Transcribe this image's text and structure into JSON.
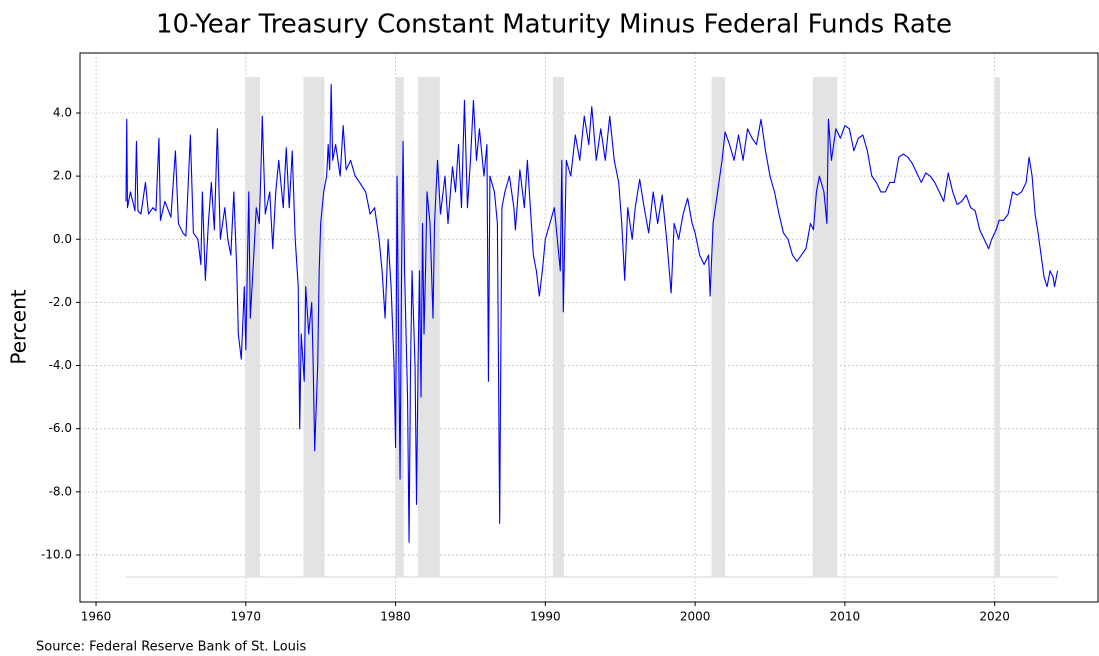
{
  "chart_data": {
    "type": "line",
    "title": "10-Year Treasury Constant Maturity Minus Federal Funds Rate",
    "y_label": "Percent",
    "source": "Source:  Federal Reserve Bank of St. Louis",
    "xlim": [
      1958.93,
      2026.9
    ],
    "ylim": [
      -11.49,
      5.9
    ],
    "xticks": [
      1960,
      1970,
      1980,
      1990,
      2000,
      2010,
      2020
    ],
    "yticks": [
      {
        "value": 4,
        "label": "4.0"
      },
      {
        "value": 2,
        "label": "2.0"
      },
      {
        "value": 0,
        "label": "0.0"
      },
      {
        "value": -2,
        "label": "-2.0"
      },
      {
        "value": -4,
        "label": "-4.0"
      },
      {
        "value": -6,
        "label": "-6.0"
      },
      {
        "value": -8,
        "label": "-8.0"
      },
      {
        "value": -10,
        "label": "-10.0"
      }
    ],
    "grid": true,
    "recessions": [
      [
        1969.95,
        1970.95
      ],
      [
        1973.85,
        1975.25
      ],
      [
        1980.0,
        1980.55
      ],
      [
        1981.5,
        1982.95
      ],
      [
        1990.5,
        1991.25
      ],
      [
        2001.1,
        2002.0
      ],
      [
        2007.85,
        2009.5
      ],
      [
        2020.0,
        2020.35
      ]
    ],
    "shade_ylim": [
      -10.7,
      5.14
    ],
    "shade_color": "#e3e3e3",
    "x": [
      1962.0,
      1962.05,
      1962.1,
      1962.3,
      1962.6,
      1962.7,
      1962.8,
      1963.0,
      1963.3,
      1963.5,
      1963.8,
      1964.0,
      1964.2,
      1964.3,
      1964.6,
      1965.0,
      1965.3,
      1965.5,
      1965.8,
      1966.0,
      1966.3,
      1966.5,
      1966.8,
      1967.0,
      1967.1,
      1967.3,
      1967.5,
      1967.7,
      1967.9,
      1968.1,
      1968.3,
      1968.6,
      1968.8,
      1969.0,
      1969.2,
      1969.4,
      1969.5,
      1969.7,
      1969.9,
      1970.0,
      1970.2,
      1970.3,
      1970.5,
      1970.7,
      1970.9,
      1971.0,
      1971.1,
      1971.3,
      1971.6,
      1971.8,
      1972.0,
      1972.2,
      1972.5,
      1972.7,
      1972.9,
      1973.1,
      1973.3,
      1973.5,
      1973.6,
      1973.7,
      1973.9,
      1974.0,
      1974.2,
      1974.4,
      1974.5,
      1974.6,
      1974.8,
      1974.9,
      1975.0,
      1975.2,
      1975.4,
      1975.5,
      1975.6,
      1975.7,
      1975.8,
      1976.0,
      1976.3,
      1976.5,
      1976.7,
      1977.0,
      1977.3,
      1977.6,
      1978.0,
      1978.3,
      1978.6,
      1978.9,
      1979.1,
      1979.3,
      1979.5,
      1979.7,
      1979.9,
      1980.0,
      1980.1,
      1980.2,
      1980.3,
      1980.4,
      1980.5,
      1980.6,
      1980.7,
      1980.8,
      1980.9,
      1981.0,
      1981.1,
      1981.3,
      1981.4,
      1981.5,
      1981.6,
      1981.7,
      1981.8,
      1981.9,
      1982.0,
      1982.1,
      1982.3,
      1982.5,
      1982.6,
      1982.8,
      1983.0,
      1983.3,
      1983.5,
      1983.8,
      1984.0,
      1984.2,
      1984.4,
      1984.6,
      1984.8,
      1985.0,
      1985.2,
      1985.4,
      1985.6,
      1985.9,
      1986.1,
      1986.2,
      1986.3,
      1986.6,
      1986.8,
      1986.95,
      1987.0,
      1987.1,
      1987.3,
      1987.6,
      1987.9,
      1988.0,
      1988.3,
      1988.6,
      1988.8,
      1989.0,
      1989.2,
      1989.4,
      1989.6,
      1989.8,
      1990.0,
      1990.3,
      1990.6,
      1990.8,
      1991.0,
      1991.1,
      1991.2,
      1991.4,
      1991.7,
      1992.0,
      1992.3,
      1992.6,
      1992.9,
      1993.1,
      1993.4,
      1993.7,
      1994.0,
      1994.3,
      1994.6,
      1994.9,
      1995.1,
      1995.3,
      1995.5,
      1995.8,
      1996.0,
      1996.3,
      1996.6,
      1996.9,
      1997.2,
      1997.5,
      1997.8,
      1998.1,
      1998.4,
      1998.6,
      1998.9,
      1999.2,
      1999.5,
      1999.8,
      2000.0,
      2000.3,
      2000.6,
      2000.9,
      2001.0,
      2001.2,
      2001.5,
      2001.8,
      2002.0,
      2002.3,
      2002.6,
      2002.9,
      2003.2,
      2003.5,
      2003.8,
      2004.1,
      2004.4,
      2004.7,
      2005.0,
      2005.3,
      2005.6,
      2005.9,
      2006.2,
      2006.5,
      2006.8,
      2007.1,
      2007.4,
      2007.7,
      2007.9,
      2008.1,
      2008.3,
      2008.6,
      2008.8,
      2008.9,
      2009.1,
      2009.4,
      2009.7,
      2010.0,
      2010.3,
      2010.6,
      2010.9,
      2011.2,
      2011.5,
      2011.8,
      2012.1,
      2012.4,
      2012.7,
      2013.0,
      2013.3,
      2013.6,
      2013.9,
      2014.2,
      2014.5,
      2014.8,
      2015.1,
      2015.4,
      2015.7,
      2016.0,
      2016.3,
      2016.6,
      2016.9,
      2017.2,
      2017.5,
      2017.8,
      2018.1,
      2018.4,
      2018.7,
      2019.0,
      2019.3,
      2019.6,
      2019.8,
      2020.1,
      2020.3,
      2020.6,
      2020.9,
      2021.2,
      2021.5,
      2021.8,
      2022.1,
      2022.3,
      2022.5,
      2022.7,
      2022.9,
      2023.1,
      2023.3,
      2023.5,
      2023.7,
      2023.9,
      2024.0,
      2024.2
    ],
    "series": [
      {
        "name": "10Y minus Fed Funds",
        "color": "#0000ff",
        "values": [
          1.2,
          3.8,
          1.0,
          1.5,
          0.9,
          3.1,
          0.9,
          0.8,
          1.8,
          0.8,
          1.0,
          0.9,
          3.2,
          0.6,
          1.2,
          0.7,
          2.8,
          0.5,
          0.2,
          0.1,
          3.3,
          0.2,
          0.0,
          -0.8,
          1.5,
          -1.3,
          0.5,
          1.8,
          0.3,
          3.5,
          0.0,
          1.0,
          0.0,
          -0.5,
          1.5,
          -1.0,
          -3.0,
          -3.8,
          -1.5,
          -3.5,
          1.5,
          -2.5,
          -0.8,
          1.0,
          0.5,
          2.0,
          3.9,
          0.8,
          1.5,
          -0.3,
          1.5,
          2.5,
          1.0,
          2.9,
          1.0,
          2.8,
          0.0,
          -1.5,
          -6.0,
          -3.0,
          -4.5,
          -1.5,
          -3.0,
          -2.0,
          -4.0,
          -6.7,
          -4.0,
          -1.0,
          0.5,
          1.5,
          2.0,
          3.0,
          2.2,
          4.9,
          2.5,
          3.0,
          2.0,
          3.6,
          2.2,
          2.5,
          2.0,
          1.8,
          1.5,
          0.8,
          1.0,
          0.0,
          -1.0,
          -2.5,
          0.0,
          -1.5,
          -4.0,
          -6.6,
          2.0,
          -3.0,
          -7.6,
          -1.0,
          3.1,
          -1.0,
          -3.0,
          -5.0,
          -9.6,
          -4.0,
          -1.0,
          -4.0,
          -8.4,
          -4.0,
          -1.0,
          -5.0,
          0.5,
          -3.0,
          -1.0,
          1.5,
          0.5,
          -2.5,
          0.5,
          2.5,
          0.8,
          2.0,
          0.5,
          2.3,
          1.5,
          3.0,
          1.0,
          4.4,
          1.0,
          2.5,
          4.4,
          2.5,
          3.5,
          2.0,
          3.0,
          -4.5,
          2.0,
          1.5,
          0.5,
          -9.0,
          -5.5,
          1.0,
          1.5,
          2.0,
          1.0,
          0.3,
          2.2,
          1.0,
          2.5,
          1.0,
          -0.5,
          -1.0,
          -1.8,
          -1.0,
          0.0,
          0.5,
          1.0,
          0.0,
          -1.0,
          2.5,
          -2.3,
          2.5,
          2.0,
          3.3,
          2.5,
          3.9,
          3.0,
          4.2,
          2.5,
          3.5,
          2.5,
          3.9,
          2.5,
          1.8,
          0.5,
          -1.3,
          1.0,
          0.0,
          1.0,
          1.9,
          1.0,
          0.2,
          1.5,
          0.5,
          1.4,
          0.0,
          -1.7,
          0.5,
          0.0,
          0.8,
          1.3,
          0.5,
          0.2,
          -0.5,
          -0.8,
          -0.5,
          -1.8,
          0.5,
          1.5,
          2.5,
          3.4,
          3.0,
          2.5,
          3.3,
          2.5,
          3.5,
          3.2,
          3.0,
          3.8,
          2.8,
          2.0,
          1.5,
          0.8,
          0.2,
          0.0,
          -0.5,
          -0.7,
          -0.5,
          -0.3,
          0.5,
          0.3,
          1.5,
          2.0,
          1.5,
          0.5,
          3.8,
          2.5,
          3.5,
          3.2,
          3.6,
          3.5,
          2.8,
          3.2,
          3.3,
          2.8,
          2.0,
          1.8,
          1.5,
          1.5,
          1.8,
          1.8,
          2.6,
          2.7,
          2.6,
          2.4,
          2.1,
          1.8,
          2.1,
          2.0,
          1.8,
          1.5,
          1.2,
          2.1,
          1.5,
          1.1,
          1.2,
          1.4,
          1.0,
          0.9,
          0.3,
          0.0,
          -0.3,
          0.0,
          0.3,
          0.6,
          0.6,
          0.8,
          1.5,
          1.4,
          1.5,
          1.8,
          2.6,
          2.0,
          0.8,
          0.2,
          -0.5,
          -1.2,
          -1.5,
          -1.0,
          -1.2,
          -1.5,
          -1.0
        ]
      }
    ]
  }
}
